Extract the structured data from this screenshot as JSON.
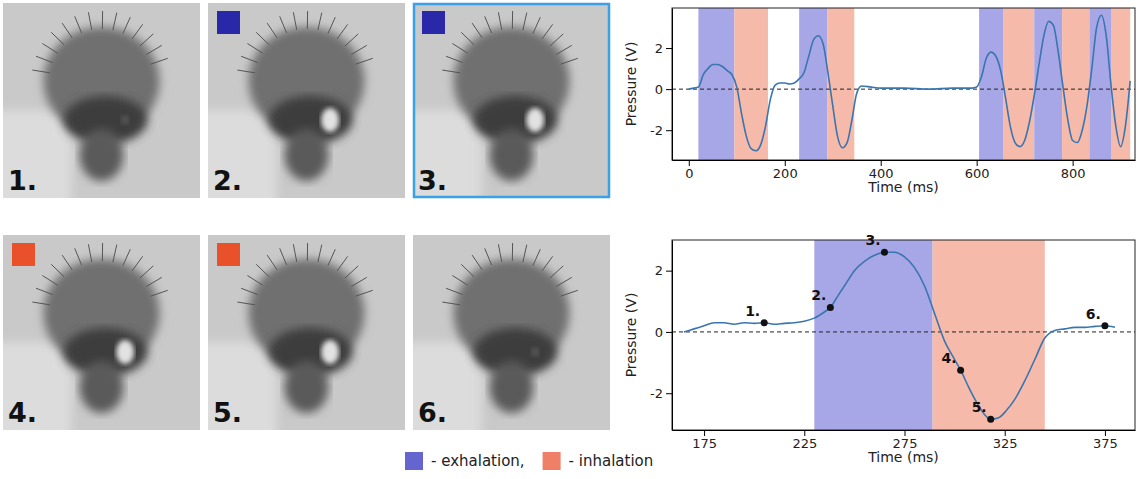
{
  "photos": {
    "labels": [
      "1.",
      "2.",
      "3.",
      "4.",
      "5.",
      "6."
    ],
    "marker_colors": [
      null,
      "#2828a8",
      "#2828a8",
      "#e8512a",
      "#e8512a",
      null
    ]
  },
  "legend_items": [
    {
      "label": "- exhalation,",
      "color": "#6565cf"
    },
    {
      "label": "- inhalation",
      "color": "#ef7f66"
    }
  ],
  "chart_data": [
    {
      "type": "line",
      "y_label": "Pressure (V)",
      "x_label": "Time (ms)",
      "xlim": [
        -35,
        930
      ],
      "ylim": [
        -3.45,
        3.95
      ],
      "xticks": [
        0,
        200,
        400,
        600,
        800
      ],
      "yticks": [
        -2,
        0,
        2
      ],
      "reference_line": 0,
      "spans": [
        {
          "start": 20,
          "end": 95,
          "color": "#9d9de4"
        },
        {
          "start": 95,
          "end": 165,
          "color": "#f5b2a2"
        },
        {
          "start": 230,
          "end": 289,
          "color": "#9d9de4"
        },
        {
          "start": 289,
          "end": 345,
          "color": "#f5b2a2"
        },
        {
          "start": 605,
          "end": 655,
          "color": "#9d9de4"
        },
        {
          "start": 655,
          "end": 720,
          "color": "#f5b2a2"
        },
        {
          "start": 720,
          "end": 778,
          "color": "#9d9de4"
        },
        {
          "start": 778,
          "end": 835,
          "color": "#f5b2a2"
        },
        {
          "start": 835,
          "end": 880,
          "color": "#9d9de4"
        },
        {
          "start": 880,
          "end": 920,
          "color": "#f5b2a2"
        }
      ],
      "x": [
        0,
        10,
        20,
        30,
        40,
        50,
        60,
        70,
        80,
        90,
        100,
        110,
        120,
        130,
        140,
        150,
        160,
        170,
        180,
        190,
        200,
        210,
        220,
        230,
        240,
        250,
        260,
        270,
        280,
        290,
        300,
        310,
        320,
        330,
        340,
        350,
        360,
        380,
        400,
        450,
        500,
        550,
        590,
        600,
        610,
        620,
        630,
        640,
        650,
        660,
        670,
        680,
        690,
        700,
        710,
        720,
        730,
        740,
        750,
        760,
        770,
        780,
        790,
        800,
        810,
        820,
        830,
        840,
        850,
        860,
        870,
        880,
        890,
        900,
        910,
        920
      ],
      "series": [
        {
          "color": "#3a75b0",
          "values": [
            0.0,
            0.05,
            0.1,
            0.7,
            1.0,
            1.2,
            1.2,
            1.1,
            0.9,
            0.7,
            0.1,
            -1.2,
            -2.3,
            -2.9,
            -3.0,
            -2.7,
            -1.8,
            -0.5,
            0.2,
            0.3,
            0.3,
            0.25,
            0.3,
            0.5,
            0.8,
            1.6,
            2.4,
            2.6,
            2.2,
            0.8,
            -0.8,
            -2.3,
            -2.85,
            -2.6,
            -1.5,
            -0.2,
            0.15,
            0.1,
            0.05,
            0.05,
            0.0,
            0.05,
            0.05,
            0.1,
            0.6,
            1.5,
            1.8,
            1.6,
            0.9,
            -0.4,
            -1.8,
            -2.6,
            -2.8,
            -2.5,
            -1.6,
            -0.3,
            1.2,
            2.6,
            3.3,
            3.1,
            1.8,
            0.1,
            -1.5,
            -2.5,
            -2.6,
            -2.0,
            -0.8,
            1.0,
            3.0,
            3.6,
            2.6,
            0.2,
            -1.8,
            -2.8,
            -1.8,
            0.4
          ]
        }
      ]
    },
    {
      "type": "line",
      "y_label": "Pressure (V)",
      "x_label": "Time (ms)",
      "xlim": [
        159,
        390
      ],
      "ylim": [
        -3.2,
        3.0
      ],
      "xticks": [
        175,
        225,
        275,
        325,
        375
      ],
      "yticks": [
        -2,
        0,
        2
      ],
      "reference_line": 0,
      "spans": [
        {
          "start": 230,
          "end": 289,
          "color": "#9d9de4"
        },
        {
          "start": 289,
          "end": 345,
          "color": "#f5b2a2"
        }
      ],
      "annotations": [
        {
          "text": "1.",
          "x": 205,
          "y": 0.3
        },
        {
          "text": "2.",
          "x": 238,
          "y": 0.8
        },
        {
          "text": "3.",
          "x": 265,
          "y": 2.6
        },
        {
          "text": "4.",
          "x": 303,
          "y": -1.25
        },
        {
          "text": "5.",
          "x": 318,
          "y": -2.85
        },
        {
          "text": "6.",
          "x": 375,
          "y": 0.2
        }
      ],
      "x": [
        165,
        170,
        175,
        180,
        185,
        190,
        195,
        200,
        205,
        210,
        215,
        220,
        225,
        230,
        235,
        238,
        242,
        246,
        250,
        255,
        260,
        265,
        270,
        275,
        280,
        285,
        290,
        295,
        300,
        303,
        307,
        311,
        315,
        318,
        322,
        326,
        330,
        335,
        340,
        345,
        350,
        355,
        360,
        365,
        370,
        375,
        380
      ],
      "series": [
        {
          "color": "#3a75b0",
          "values": [
            0.0,
            0.1,
            0.2,
            0.3,
            0.3,
            0.25,
            0.3,
            0.28,
            0.3,
            0.25,
            0.28,
            0.3,
            0.35,
            0.45,
            0.65,
            0.8,
            1.2,
            1.6,
            2.0,
            2.3,
            2.5,
            2.6,
            2.6,
            2.45,
            2.1,
            1.5,
            0.6,
            -0.3,
            -0.9,
            -1.25,
            -1.8,
            -2.3,
            -2.7,
            -2.85,
            -2.8,
            -2.55,
            -2.2,
            -1.6,
            -0.9,
            -0.2,
            0.05,
            0.1,
            0.15,
            0.15,
            0.18,
            0.2,
            0.15
          ]
        }
      ]
    }
  ]
}
